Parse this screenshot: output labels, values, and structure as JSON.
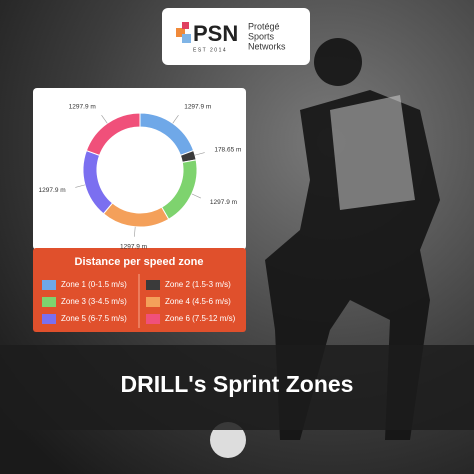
{
  "logo": {
    "mark": "PSN",
    "line1": "Protégé",
    "line2": "Sports",
    "line3": "Networks",
    "est": "EST 2014"
  },
  "chart_data": {
    "type": "pie",
    "donut": true,
    "title": "Distance per speed zone",
    "categories": [
      "Zone 1 (0-1.5 m/s)",
      "Zone 2 (1.5-3 m/s)",
      "Zone 3 (3-4.5 m/s)",
      "Zone 4 (4.5-6 m/s)",
      "Zone 5 (6-7.5 m/s)",
      "Zone 6 (7.5-12 m/s)"
    ],
    "values": [
      1297.9,
      178.65,
      1297.9,
      1297.9,
      1297.9,
      1297.9
    ],
    "value_labels": [
      "1297.9 m",
      "178.65 m",
      "1297.9 m",
      "1297.9 m",
      "1297.9 m",
      "1297.9 m"
    ],
    "colors": [
      "#6fa8e8",
      "#3a3a3a",
      "#7ed36e",
      "#f4a05a",
      "#7b6ff0",
      "#f0507a"
    ]
  },
  "banner": {
    "title": "DRILL's Sprint Zones"
  }
}
